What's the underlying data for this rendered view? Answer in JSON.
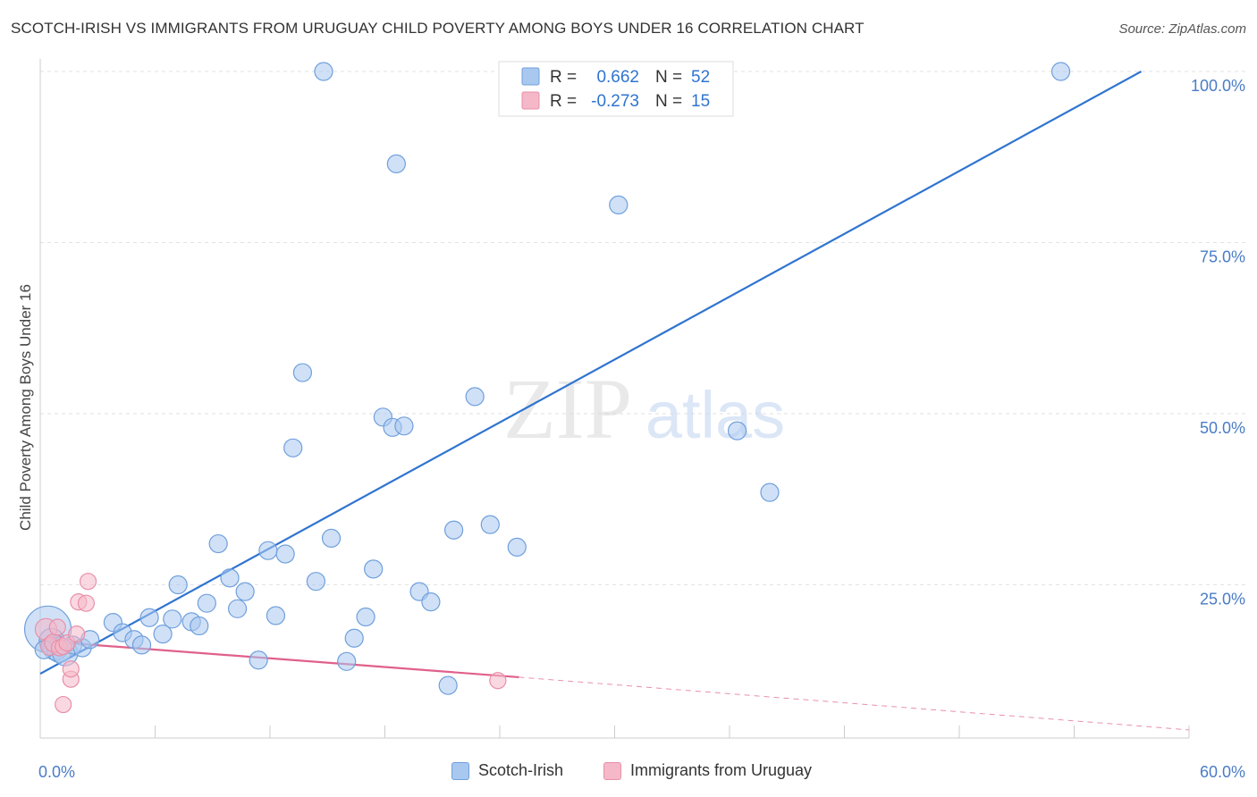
{
  "header": {
    "title": "SCOTCH-IRISH VS IMMIGRANTS FROM URUGUAY CHILD POVERTY AMONG BOYS UNDER 16 CORRELATION CHART",
    "source": "Source: ZipAtlas.com"
  },
  "watermark": {
    "zip": "ZIP",
    "atlas": "atlas"
  },
  "legend_top": [
    {
      "r_label": "R =",
      "r_value": "0.662",
      "n_label": "N =",
      "n_value": "52"
    },
    {
      "r_label": "R =",
      "r_value": "-0.273",
      "n_label": "N =",
      "n_value": "15"
    }
  ],
  "legend_bottom": [
    "Scotch-Irish",
    "Immigrants from Uruguay"
  ],
  "colors": {
    "blue_fill": "#a9c8f0",
    "blue_stroke": "#6f9fdc",
    "blue_line": "#2f74d0",
    "pink_fill": "#f5b8c9",
    "pink_stroke": "#e890a8",
    "pink_line": "#e0608a",
    "axis_text": "#4a7cc7"
  },
  "chart_data": {
    "type": "scatter",
    "title": "SCOTCH-IRISH VS IMMIGRANTS FROM URUGUAY CHILD POVERTY AMONG BOYS UNDER 16 CORRELATION CHART",
    "xlabel": "",
    "ylabel": "Child Poverty Among Boys Under 16",
    "xlim": [
      0,
      60
    ],
    "ylim": [
      0,
      105
    ],
    "x_tick_labels": [
      "0.0%",
      "60.0%"
    ],
    "y_ticks": [
      25,
      50,
      75,
      100
    ],
    "y_tick_labels": [
      "25.0%",
      "50.0%",
      "75.0%",
      "100.0%"
    ],
    "grid": true,
    "legend_position": "top-center",
    "series": [
      {
        "name": "Scotch-Irish",
        "R": 0.662,
        "N": 52,
        "trend": {
          "x": [
            0,
            57.5
          ],
          "y": [
            12,
            100
          ]
        },
        "points": [
          [
            0.4,
            18.5
          ],
          [
            0.6,
            16.8
          ],
          [
            0.8,
            15.8
          ],
          [
            1.0,
            15.5
          ],
          [
            1.3,
            15.0
          ],
          [
            1.7,
            16.2
          ],
          [
            2.2,
            15.8
          ],
          [
            2.6,
            17.0
          ],
          [
            3.8,
            19.5
          ],
          [
            4.3,
            18.0
          ],
          [
            4.9,
            17.0
          ],
          [
            5.3,
            16.2
          ],
          [
            5.7,
            20.2
          ],
          [
            6.4,
            17.8
          ],
          [
            6.9,
            20.0
          ],
          [
            7.2,
            25.0
          ],
          [
            7.9,
            19.6
          ],
          [
            8.3,
            19.0
          ],
          [
            8.7,
            22.3
          ],
          [
            9.3,
            31.0
          ],
          [
            9.9,
            26.0
          ],
          [
            10.3,
            21.5
          ],
          [
            10.7,
            24.0
          ],
          [
            11.4,
            14.0
          ],
          [
            11.9,
            30.0
          ],
          [
            12.3,
            20.5
          ],
          [
            12.8,
            29.5
          ],
          [
            13.2,
            45.0
          ],
          [
            13.7,
            56.0
          ],
          [
            14.4,
            25.5
          ],
          [
            14.8,
            100.0
          ],
          [
            15.2,
            31.8
          ],
          [
            16.0,
            13.8
          ],
          [
            16.4,
            17.2
          ],
          [
            17.0,
            20.3
          ],
          [
            17.4,
            27.3
          ],
          [
            17.9,
            49.5
          ],
          [
            18.4,
            48.0
          ],
          [
            18.6,
            86.5
          ],
          [
            19.0,
            48.2
          ],
          [
            19.8,
            24.0
          ],
          [
            20.4,
            22.5
          ],
          [
            21.3,
            10.3
          ],
          [
            21.6,
            33.0
          ],
          [
            22.7,
            52.5
          ],
          [
            23.5,
            33.8
          ],
          [
            24.9,
            30.5
          ],
          [
            30.2,
            80.5
          ],
          [
            36.4,
            47.5
          ],
          [
            38.1,
            38.5
          ],
          [
            53.3,
            100.0
          ],
          [
            0.2,
            15.5
          ]
        ],
        "sizes": [
          26,
          14,
          14,
          14,
          14,
          10,
          10,
          10,
          10,
          10,
          10,
          10,
          10,
          10,
          10,
          10,
          10,
          10,
          10,
          10,
          10,
          10,
          10,
          10,
          10,
          10,
          10,
          10,
          10,
          10,
          10,
          10,
          10,
          10,
          10,
          10,
          10,
          10,
          10,
          10,
          10,
          10,
          10,
          10,
          10,
          10,
          10,
          10,
          10,
          10,
          10,
          10
        ]
      },
      {
        "name": "Immigrants from Uruguay",
        "R": -0.273,
        "N": 15,
        "trend": {
          "x": [
            0,
            25.0
          ],
          "y": [
            16.8,
            11.5
          ]
        },
        "trend_ext": {
          "x": [
            25.0,
            60
          ],
          "y": [
            11.5,
            3.8
          ]
        },
        "points": [
          [
            0.3,
            18.5
          ],
          [
            0.5,
            16.0
          ],
          [
            0.7,
            16.5
          ],
          [
            0.9,
            18.8
          ],
          [
            1.0,
            15.8
          ],
          [
            1.2,
            16.0
          ],
          [
            1.4,
            16.5
          ],
          [
            1.2,
            7.5
          ],
          [
            1.6,
            11.2
          ],
          [
            1.6,
            12.7
          ],
          [
            1.9,
            17.8
          ],
          [
            2.0,
            22.5
          ],
          [
            2.4,
            22.3
          ],
          [
            2.5,
            25.5
          ],
          [
            23.9,
            11.0
          ]
        ],
        "sizes": [
          12,
          10,
          10,
          9,
          9,
          9,
          9,
          9,
          9,
          9,
          9,
          9,
          9,
          9,
          9
        ]
      }
    ]
  }
}
